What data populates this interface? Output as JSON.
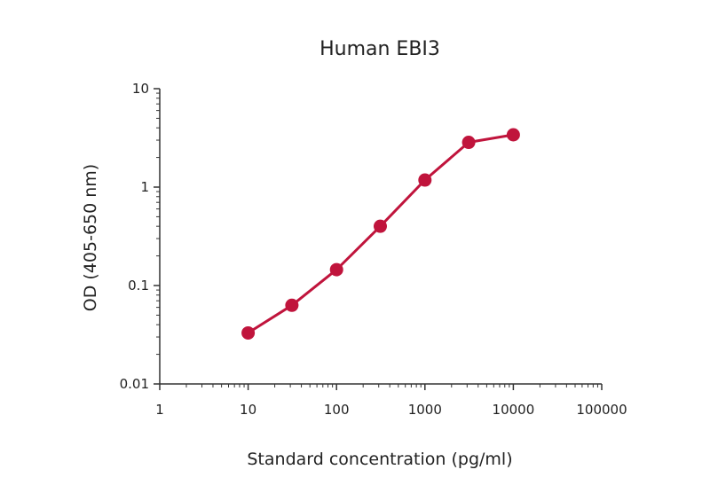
{
  "chart_data": {
    "type": "line",
    "title": "Human EBI3",
    "xlabel": "Standard concentration (pg/ml)",
    "ylabel": "OD (405-650 nm)",
    "x_scale": "log",
    "y_scale": "log",
    "xlim": [
      1,
      100000
    ],
    "ylim": [
      0.01,
      10
    ],
    "x_ticks": [
      1,
      10,
      100,
      1000,
      10000,
      100000
    ],
    "x_tick_labels": [
      "1",
      "10",
      "100",
      "1000",
      "10000",
      "100000"
    ],
    "y_ticks": [
      0.01,
      0.1,
      1,
      10
    ],
    "y_tick_labels": [
      "0.01",
      "0.1",
      "1",
      "10"
    ],
    "grid": false,
    "legend": "none",
    "series": [
      {
        "color": "#c0143c",
        "points": [
          {
            "x": 10,
            "y": 0.033
          },
          {
            "x": 31.25,
            "y": 0.063
          },
          {
            "x": 100,
            "y": 0.145
          },
          {
            "x": 312.5,
            "y": 0.4
          },
          {
            "x": 1000,
            "y": 1.18
          },
          {
            "x": 3125,
            "y": 2.85
          },
          {
            "x": 10000,
            "y": 3.4
          }
        ]
      }
    ]
  }
}
